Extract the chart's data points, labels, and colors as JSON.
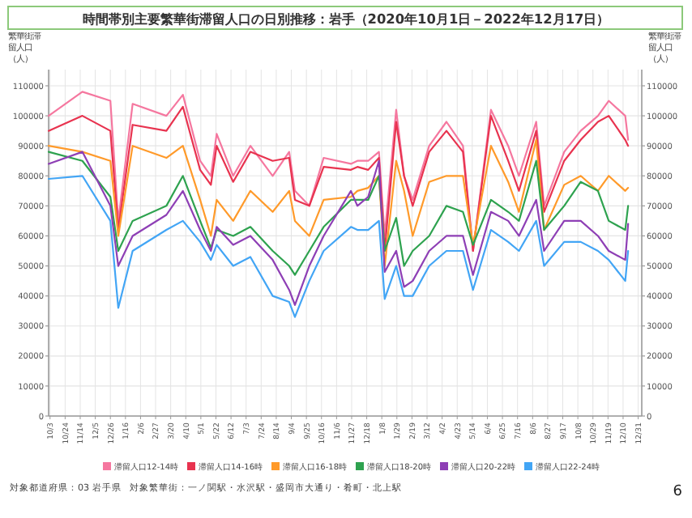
{
  "chart_data": {
    "type": "line",
    "title": "時間帯別主要繁華街滞留人口の日別推移：岩手（2020年10月1日－2022年12月17日）",
    "ylabel": "繁華街滞留人口（人）",
    "y2label": "繁華街滞留人口（人）",
    "x": [
      "2020-10-01",
      "2020-11-17",
      "2020-12-26",
      "2021-01-06",
      "2021-01-26",
      "2021-03-14",
      "2021-04-06",
      "2021-04-30",
      "2021-05-15",
      "2021-05-23",
      "2021-06-15",
      "2021-07-09",
      "2021-08-09",
      "2021-09-01",
      "2021-09-09",
      "2021-09-29",
      "2021-10-19",
      "2021-11-26",
      "2021-12-05",
      "2021-12-20",
      "2022-01-04",
      "2022-01-12",
      "2022-01-28",
      "2022-02-08",
      "2022-02-20",
      "2022-03-15",
      "2022-04-08",
      "2022-05-01",
      "2022-05-15",
      "2022-06-09",
      "2022-07-03",
      "2022-07-18",
      "2022-08-11",
      "2022-08-22",
      "2022-09-19",
      "2022-10-12",
      "2022-11-05",
      "2022-11-20",
      "2022-12-13",
      "2022-12-17"
    ],
    "series": [
      {
        "name": "滞留人口12-14時",
        "color": "#f5779f",
        "values": [
          100000,
          108000,
          105000,
          65000,
          104000,
          100000,
          107000,
          85000,
          80000,
          94000,
          80000,
          90000,
          80000,
          88000,
          75000,
          70000,
          86000,
          84000,
          85000,
          85000,
          88000,
          60000,
          102000,
          80000,
          72000,
          90000,
          98000,
          90000,
          55000,
          102000,
          90000,
          80000,
          98000,
          70000,
          88000,
          95000,
          100000,
          105000,
          100000,
          92000
        ]
      },
      {
        "name": "滞留人口14-16時",
        "color": "#e8334f",
        "values": [
          95000,
          100000,
          95000,
          62000,
          97000,
          95000,
          103000,
          82000,
          77000,
          90000,
          78000,
          88000,
          85000,
          86000,
          72000,
          70000,
          83000,
          82000,
          83000,
          82000,
          86000,
          55000,
          98000,
          80000,
          70000,
          88000,
          95000,
          88000,
          55000,
          100000,
          85000,
          75000,
          95000,
          68000,
          85000,
          92000,
          98000,
          100000,
          92000,
          90000
        ]
      },
      {
        "name": "滞留人口16-18時",
        "color": "#ff9a2a",
        "values": [
          90000,
          88000,
          85000,
          60000,
          90000,
          86000,
          90000,
          72000,
          60000,
          72000,
          65000,
          75000,
          68000,
          75000,
          65000,
          60000,
          72000,
          73000,
          75000,
          76000,
          80000,
          50000,
          85000,
          75000,
          60000,
          78000,
          80000,
          80000,
          57000,
          90000,
          78000,
          68000,
          92000,
          62000,
          77000,
          80000,
          75000,
          80000,
          75000,
          76000
        ]
      },
      {
        "name": "滞留人口18-20時",
        "color": "#2ea24f",
        "values": [
          88000,
          85000,
          73000,
          55000,
          65000,
          70000,
          80000,
          65000,
          56000,
          62000,
          60000,
          63000,
          55000,
          50000,
          47000,
          55000,
          63000,
          72000,
          72000,
          72000,
          80000,
          55000,
          66000,
          50000,
          55000,
          60000,
          70000,
          68000,
          57000,
          72000,
          68000,
          65000,
          85000,
          62000,
          70000,
          78000,
          75000,
          65000,
          62000,
          70000
        ]
      },
      {
        "name": "滞留人口20-22時",
        "color": "#8e3fb5",
        "values": [
          84000,
          88000,
          70000,
          50000,
          60000,
          67000,
          75000,
          62000,
          55000,
          63000,
          57000,
          60000,
          52000,
          42000,
          37000,
          50000,
          60000,
          75000,
          70000,
          73000,
          85000,
          48000,
          55000,
          43000,
          45000,
          55000,
          60000,
          60000,
          47000,
          68000,
          65000,
          60000,
          72000,
          55000,
          65000,
          65000,
          60000,
          55000,
          52000,
          64000
        ]
      },
      {
        "name": "滞留人口22-24時",
        "color": "#42a5f5",
        "values": [
          79000,
          80000,
          65000,
          36000,
          55000,
          62000,
          65000,
          58000,
          52000,
          57000,
          50000,
          53000,
          40000,
          38000,
          33000,
          45000,
          55000,
          63000,
          62000,
          62000,
          65000,
          39000,
          50000,
          40000,
          40000,
          50000,
          55000,
          55000,
          42000,
          62000,
          58000,
          55000,
          65000,
          50000,
          58000,
          58000,
          55000,
          52000,
          45000,
          55000
        ]
      }
    ],
    "xlim": [
      "2020-10-01",
      "2023-01-05"
    ],
    "xticks": [
      {
        "value": "2020-10-03",
        "label": "10/3"
      },
      {
        "value": "2020-10-24",
        "label": "10/24"
      },
      {
        "value": "2020-11-14",
        "label": "11/14"
      },
      {
        "value": "2020-12-05",
        "label": "12/5"
      },
      {
        "value": "2020-12-26",
        "label": "12/26"
      },
      {
        "value": "2021-01-16",
        "label": "1/16"
      },
      {
        "value": "2021-02-06",
        "label": "2/6"
      },
      {
        "value": "2021-02-27",
        "label": "2/27"
      },
      {
        "value": "2021-03-20",
        "label": "3/20"
      },
      {
        "value": "2021-04-10",
        "label": "4/10"
      },
      {
        "value": "2021-05-01",
        "label": "5/1"
      },
      {
        "value": "2021-05-22",
        "label": "5/22"
      },
      {
        "value": "2021-06-12",
        "label": "6/12"
      },
      {
        "value": "2021-07-03",
        "label": "7/3"
      },
      {
        "value": "2021-07-24",
        "label": "7/24"
      },
      {
        "value": "2021-08-14",
        "label": "8/14"
      },
      {
        "value": "2021-09-04",
        "label": "9/4"
      },
      {
        "value": "2021-09-25",
        "label": "9/25"
      },
      {
        "value": "2021-10-16",
        "label": "10/16"
      },
      {
        "value": "2021-11-06",
        "label": "11/6"
      },
      {
        "value": "2021-11-27",
        "label": "11/27"
      },
      {
        "value": "2021-12-18",
        "label": "12/18"
      },
      {
        "value": "2022-01-08",
        "label": "1/8"
      },
      {
        "value": "2022-01-29",
        "label": "1/29"
      },
      {
        "value": "2022-02-19",
        "label": "2/19"
      },
      {
        "value": "2022-03-12",
        "label": "3/12"
      },
      {
        "value": "2022-04-02",
        "label": "4/2"
      },
      {
        "value": "2022-04-23",
        "label": "4/23"
      },
      {
        "value": "2022-05-14",
        "label": "5/14"
      },
      {
        "value": "2022-06-04",
        "label": "6/4"
      },
      {
        "value": "2022-06-25",
        "label": "6/25"
      },
      {
        "value": "2022-07-16",
        "label": "7/16"
      },
      {
        "value": "2022-08-06",
        "label": "8/6"
      },
      {
        "value": "2022-08-27",
        "label": "8/27"
      },
      {
        "value": "2022-09-17",
        "label": "9/17"
      },
      {
        "value": "2022-10-08",
        "label": "10/8"
      },
      {
        "value": "2022-10-29",
        "label": "10/29"
      },
      {
        "value": "2022-11-19",
        "label": "11/19"
      },
      {
        "value": "2022-12-10",
        "label": "12/10"
      },
      {
        "value": "2022-12-31",
        "label": "12/31"
      }
    ],
    "ylim": [
      0,
      110000
    ],
    "yticks": [
      0,
      10000,
      20000,
      30000,
      40000,
      50000,
      60000,
      70000,
      80000,
      90000,
      100000,
      110000
    ],
    "y2lim": [
      0,
      110000
    ],
    "y2ticks": [
      0,
      10000,
      20000,
      30000,
      40000,
      50000,
      60000,
      70000,
      80000,
      90000,
      100000,
      110000
    ],
    "grid": true,
    "legend": "bottom",
    "annotations": [
      "対象都道府県：03 岩手県",
      "対象繁華街：一ノ関駅・水沢駅・盛岡市大通り・肴町・北上駅",
      "6"
    ]
  }
}
